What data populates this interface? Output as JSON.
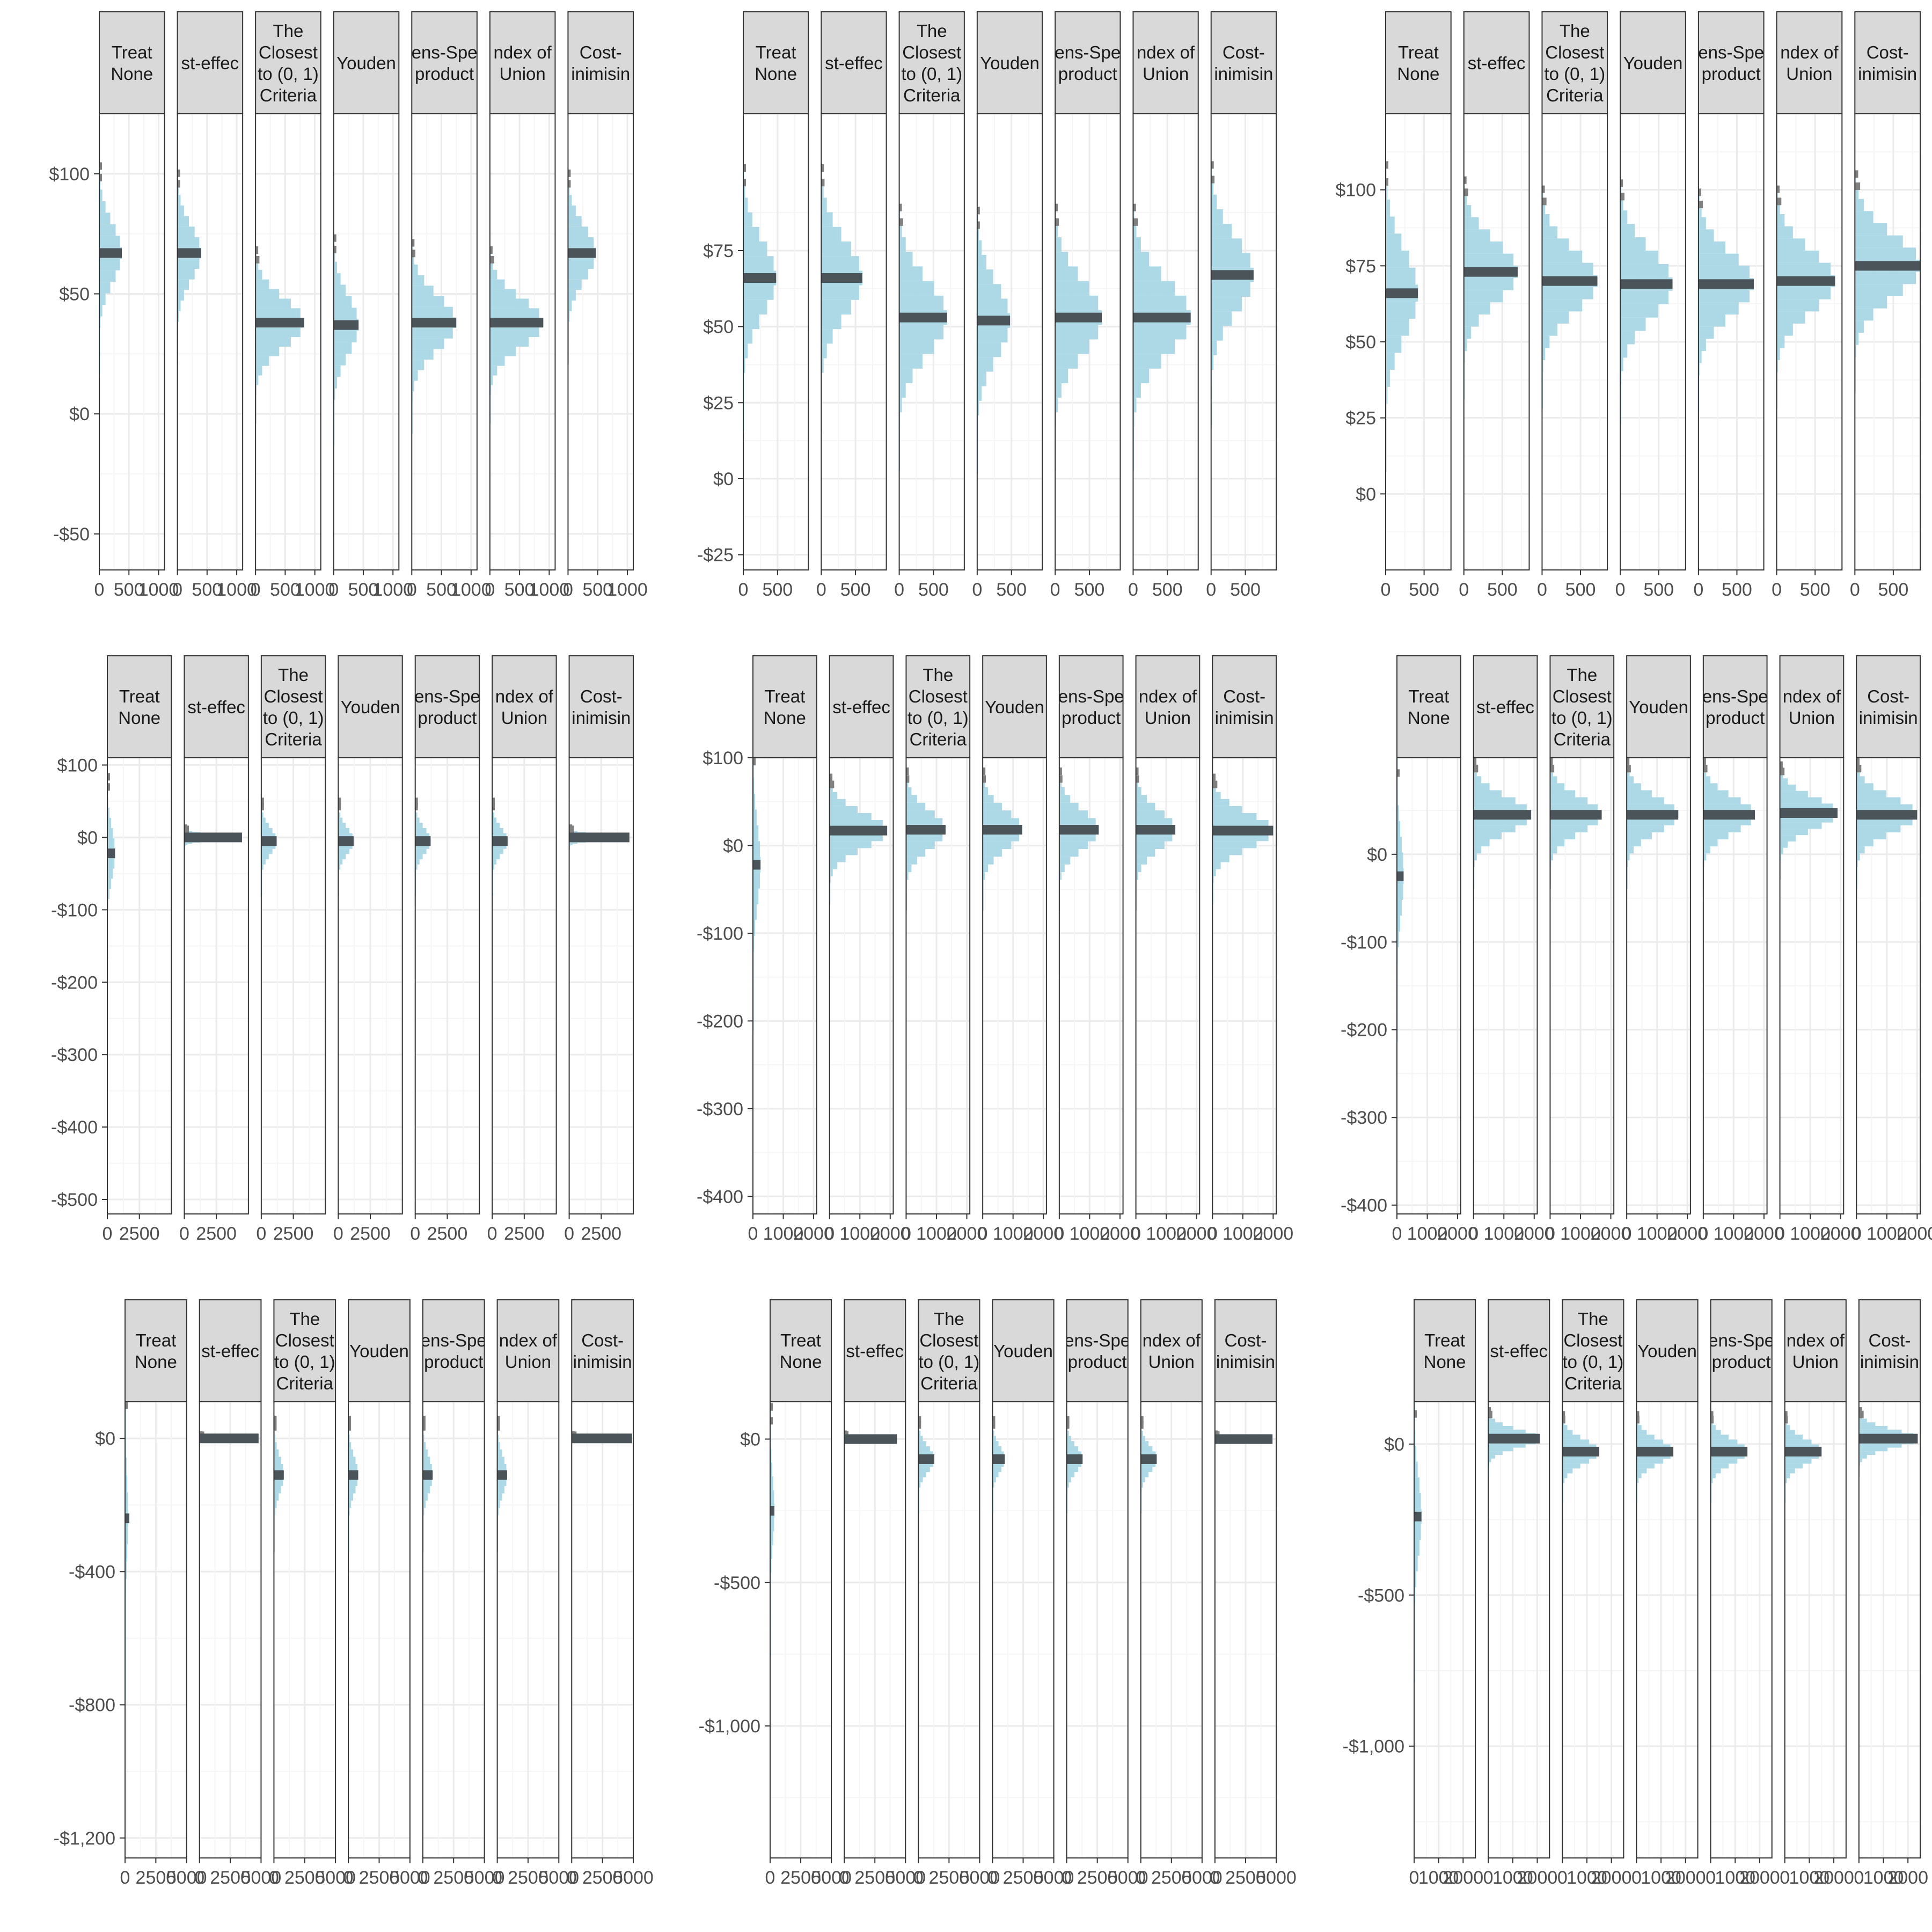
{
  "colors": {
    "hist_fill": "#ADD8E6",
    "hist_highlight": "#808080",
    "mean_bar": "#4A5459",
    "strip_bg": "#D9D9D9",
    "grid_major": "#EBEBEB",
    "grid_minor": "#F5F5F5",
    "frame": "#333333"
  },
  "facet_labels": [
    [
      "Treat",
      "None"
    ],
    [
      "st-effec"
    ],
    [
      "The",
      "Closest",
      "to (0, 1)",
      "Criteria"
    ],
    [
      "Youden"
    ],
    [
      "ens-Spe",
      "product"
    ],
    [
      "ndex of",
      "Union"
    ],
    [
      "Cost-",
      "inimisin"
    ]
  ],
  "chart_data": [
    {
      "type": "histogram",
      "orientation": "horizontal",
      "panel": "row1-col1",
      "ylim": [
        -65,
        125
      ],
      "y_ticks": [
        100,
        50,
        0,
        -50
      ],
      "y_tick_labels": [
        "$100",
        "$50",
        "$0",
        "-$50"
      ],
      "x_max": 1100,
      "x_ticks": [
        0,
        500,
        1000
      ],
      "x_tick_labels": [
        "0",
        "500",
        "1000"
      ],
      "y_minor": true,
      "series": [
        {
          "label": "Treat None",
          "mean": 67,
          "sd": 12,
          "peak": 380
        },
        {
          "label": "Cost-effective",
          "mean": 67,
          "sd": 11,
          "peak": 400
        },
        {
          "label": "The Closest to (0, 1) Criteria",
          "mean": 38,
          "sd": 10,
          "peak": 820
        },
        {
          "label": "Youden",
          "mean": 37,
          "sd": 12,
          "peak": 420
        },
        {
          "label": "Sens-Spec product",
          "mean": 38,
          "sd": 11,
          "peak": 750
        },
        {
          "label": "Index of Union",
          "mean": 38,
          "sd": 10,
          "peak": 900
        },
        {
          "label": "Cost-minimising",
          "mean": 67,
          "sd": 11,
          "peak": 470
        }
      ]
    },
    {
      "type": "histogram",
      "orientation": "horizontal",
      "panel": "row1-col2",
      "ylim": [
        -30,
        120
      ],
      "y_ticks": [
        75,
        50,
        25,
        0,
        -25
      ],
      "y_tick_labels": [
        "$75",
        "$50",
        "$25",
        "$0",
        "-$25"
      ],
      "x_max": 950,
      "x_ticks": [
        0,
        500
      ],
      "x_tick_labels": [
        "0",
        "500"
      ],
      "y_minor": true,
      "series": [
        {
          "label": "Treat None",
          "mean": 66,
          "sd": 12,
          "peak": 480
        },
        {
          "label": "Cost-effective",
          "mean": 66,
          "sd": 12,
          "peak": 600
        },
        {
          "label": "The Closest to (0, 1) Criteria",
          "mean": 53,
          "sd": 12,
          "peak": 700
        },
        {
          "label": "Youden",
          "mean": 52,
          "sd": 12,
          "peak": 480
        },
        {
          "label": "Sens-Spec product",
          "mean": 53,
          "sd": 12,
          "peak": 680
        },
        {
          "label": "Index of Union",
          "mean": 53,
          "sd": 12,
          "peak": 840
        },
        {
          "label": "Cost-minimising",
          "mean": 67,
          "sd": 12,
          "peak": 620
        }
      ]
    },
    {
      "type": "histogram",
      "orientation": "horizontal",
      "panel": "row1-col3",
      "ylim": [
        -25,
        125
      ],
      "y_ticks": [
        100,
        75,
        50,
        25,
        0
      ],
      "y_tick_labels": [
        "$100",
        "$75",
        "$50",
        "$25",
        "$0"
      ],
      "x_max": 850,
      "x_ticks": [
        0,
        500
      ],
      "x_tick_labels": [
        "0",
        "500"
      ],
      "y_minor": true,
      "series": [
        {
          "label": "Treat None",
          "mean": 66,
          "sd": 14,
          "peak": 420
        },
        {
          "label": "Cost-effective",
          "mean": 73,
          "sd": 10,
          "peak": 700
        },
        {
          "label": "The Closest to (0, 1) Criteria",
          "mean": 70,
          "sd": 10,
          "peak": 720
        },
        {
          "label": "Youden",
          "mean": 69,
          "sd": 11,
          "peak": 680
        },
        {
          "label": "Sens-Spec product",
          "mean": 69,
          "sd": 10,
          "peak": 720
        },
        {
          "label": "Index of Union",
          "mean": 70,
          "sd": 10,
          "peak": 760
        },
        {
          "label": "Cost-minimising",
          "mean": 75,
          "sd": 10,
          "peak": 860
        }
      ]
    },
    {
      "type": "histogram",
      "orientation": "horizontal",
      "panel": "row2-col1",
      "ylim": [
        -520,
        110
      ],
      "y_ticks": [
        100,
        0,
        -100,
        -200,
        -300,
        -400,
        -500
      ],
      "y_tick_labels": [
        "$100",
        "$0",
        "-$100",
        "-$200",
        "-$300",
        "-$400",
        "-$500"
      ],
      "x_max": 5000,
      "x_ticks": [
        0,
        2500
      ],
      "x_tick_labels": [
        "0",
        "2500"
      ],
      "y_minor": true,
      "series": [
        {
          "label": "Treat None",
          "mean": -22,
          "sd": 35,
          "peak": 600
        },
        {
          "label": "Cost-effective",
          "mean": 0,
          "sd": 4,
          "peak": 4500
        },
        {
          "label": "The Closest to (0, 1) Criteria",
          "mean": -5,
          "sd": 18,
          "peak": 1200
        },
        {
          "label": "Youden",
          "mean": -5,
          "sd": 18,
          "peak": 1200
        },
        {
          "label": "Sens-Spec product",
          "mean": -5,
          "sd": 18,
          "peak": 1200
        },
        {
          "label": "Index of Union",
          "mean": -5,
          "sd": 18,
          "peak": 1200
        },
        {
          "label": "Cost-minimising",
          "mean": 0,
          "sd": 4,
          "peak": 4700
        }
      ]
    },
    {
      "type": "histogram",
      "orientation": "horizontal",
      "panel": "row2-col2",
      "ylim": [
        -420,
        100
      ],
      "y_ticks": [
        100,
        0,
        -100,
        -200,
        -300,
        -400
      ],
      "y_tick_labels": [
        "$100",
        "$0",
        "-$100",
        "-$200",
        "-$300",
        "-$400"
      ],
      "x_max": 2100,
      "x_ticks": [
        0,
        1000,
        2000
      ],
      "x_tick_labels": [
        "0",
        "1000",
        "2000"
      ],
      "y_minor": true,
      "series": [
        {
          "label": "Treat None",
          "mean": -22,
          "sd": 45,
          "peak": 250
        },
        {
          "label": "Cost-effective",
          "mean": 17,
          "sd": 20,
          "peak": 1900
        },
        {
          "label": "The Closest to (0, 1) Criteria",
          "mean": 18,
          "sd": 22,
          "peak": 1300
        },
        {
          "label": "Youden",
          "mean": 18,
          "sd": 22,
          "peak": 1300
        },
        {
          "label": "Sens-Spec product",
          "mean": 18,
          "sd": 22,
          "peak": 1300
        },
        {
          "label": "Index of Union",
          "mean": 18,
          "sd": 22,
          "peak": 1300
        },
        {
          "label": "Cost-minimising",
          "mean": 17,
          "sd": 20,
          "peak": 2000
        }
      ]
    },
    {
      "type": "histogram",
      "orientation": "horizontal",
      "panel": "row2-col3",
      "ylim": [
        -410,
        110
      ],
      "y_ticks": [
        0,
        -100,
        -200,
        -300,
        -400
      ],
      "y_tick_labels": [
        "$0",
        "-$100",
        "-$200",
        "-$300",
        "-$400"
      ],
      "x_max": 2100,
      "x_ticks": [
        0,
        1000,
        2000
      ],
      "x_tick_labels": [
        "0",
        "1000",
        "2000"
      ],
      "y_minor": true,
      "series": [
        {
          "label": "Treat None",
          "mean": -25,
          "sd": 45,
          "peak": 220
        },
        {
          "label": "Cost-effective",
          "mean": 45,
          "sd": 20,
          "peak": 1900
        },
        {
          "label": "The Closest to (0, 1) Criteria",
          "mean": 45,
          "sd": 20,
          "peak": 1700
        },
        {
          "label": "Youden",
          "mean": 45,
          "sd": 20,
          "peak": 1700
        },
        {
          "label": "Sens-Spec product",
          "mean": 45,
          "sd": 20,
          "peak": 1700
        },
        {
          "label": "Index of Union",
          "mean": 47,
          "sd": 18,
          "peak": 1900
        },
        {
          "label": "Cost-minimising",
          "mean": 45,
          "sd": 20,
          "peak": 2000
        }
      ]
    },
    {
      "type": "histogram",
      "orientation": "horizontal",
      "panel": "row3-col1",
      "ylim": [
        -1260,
        110
      ],
      "y_ticks": [
        0,
        -400,
        -800,
        -1200
      ],
      "y_tick_labels": [
        "$0",
        "-$400",
        "-$800",
        "-$1,200"
      ],
      "x_max": 5000,
      "x_ticks": [
        0,
        2500,
        5000
      ],
      "x_tick_labels": [
        "0",
        "2500",
        "5000"
      ],
      "y_minor": true,
      "series": [
        {
          "label": "Treat None",
          "mean": -240,
          "sd": 130,
          "peak": 250
        },
        {
          "label": "Cost-effective",
          "mean": 0,
          "sd": 3,
          "peak": 4800
        },
        {
          "label": "The Closest to (0, 1) Criteria",
          "mean": -110,
          "sd": 55,
          "peak": 800
        },
        {
          "label": "Youden",
          "mean": -110,
          "sd": 55,
          "peak": 800
        },
        {
          "label": "Sens-Spec product",
          "mean": -110,
          "sd": 55,
          "peak": 800
        },
        {
          "label": "Index of Union",
          "mean": -110,
          "sd": 55,
          "peak": 800
        },
        {
          "label": "Cost-minimising",
          "mean": 0,
          "sd": 3,
          "peak": 4900
        }
      ]
    },
    {
      "type": "histogram",
      "orientation": "horizontal",
      "panel": "row3-col2",
      "ylim": [
        -1460,
        130
      ],
      "y_ticks": [
        0,
        -500,
        -1000
      ],
      "y_tick_labels": [
        "$0",
        "-$500",
        "-$1,000"
      ],
      "x_max": 5000,
      "x_ticks": [
        0,
        2500,
        5000
      ],
      "x_tick_labels": [
        "0",
        "2500",
        "5000"
      ],
      "y_minor": true,
      "series": [
        {
          "label": "Treat None",
          "mean": -250,
          "sd": 120,
          "peak": 350
        },
        {
          "label": "Cost-effective",
          "mean": 0,
          "sd": 5,
          "peak": 4300
        },
        {
          "label": "The Closest to (0, 1) Criteria",
          "mean": -70,
          "sd": 45,
          "peak": 1300
        },
        {
          "label": "Youden",
          "mean": -70,
          "sd": 45,
          "peak": 1000
        },
        {
          "label": "Sens-Spec product",
          "mean": -70,
          "sd": 45,
          "peak": 1300
        },
        {
          "label": "Index of Union",
          "mean": -70,
          "sd": 45,
          "peak": 1300
        },
        {
          "label": "Cost-minimising",
          "mean": 0,
          "sd": 5,
          "peak": 4700
        }
      ]
    },
    {
      "type": "histogram",
      "orientation": "horizontal",
      "panel": "row3-col3",
      "ylim": [
        -1370,
        140
      ],
      "y_ticks": [
        0,
        -500,
        -1000
      ],
      "y_tick_labels": [
        "$0",
        "-$500",
        "-$1,000"
      ],
      "x_max": 2500,
      "x_ticks": [
        0,
        1000,
        2000
      ],
      "x_tick_labels": [
        "0",
        "1000",
        "2000"
      ],
      "y_minor": true,
      "series": [
        {
          "label": "Treat None",
          "mean": -240,
          "sd": 130,
          "peak": 300
        },
        {
          "label": "Cost-effective",
          "mean": 18,
          "sd": 30,
          "peak": 2100
        },
        {
          "label": "The Closest to (0, 1) Criteria",
          "mean": -25,
          "sd": 40,
          "peak": 1500
        },
        {
          "label": "Youden",
          "mean": -25,
          "sd": 40,
          "peak": 1500
        },
        {
          "label": "Sens-Spec product",
          "mean": -25,
          "sd": 40,
          "peak": 1500
        },
        {
          "label": "Index of Union",
          "mean": -25,
          "sd": 40,
          "peak": 1500
        },
        {
          "label": "Cost-minimising",
          "mean": 18,
          "sd": 30,
          "peak": 2400
        }
      ]
    }
  ]
}
